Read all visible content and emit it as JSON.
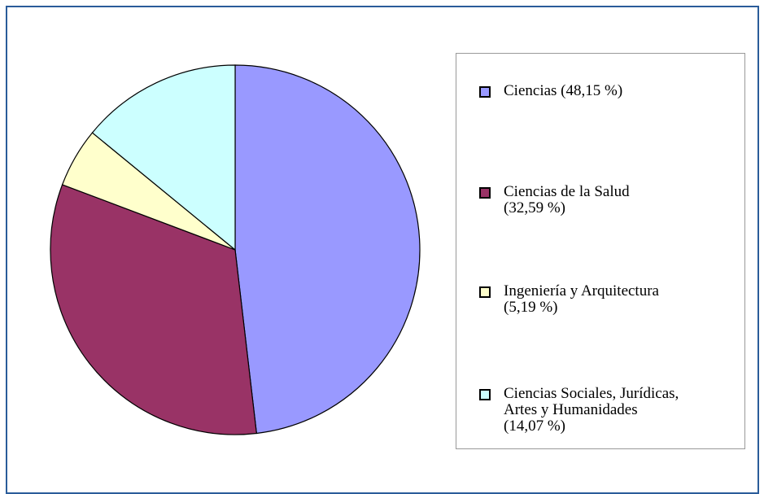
{
  "chart_data": {
    "type": "pie",
    "categories": [
      "Ciencias (48,15 %)",
      "Ciencias de la Salud\n(32,59 %)",
      "Ingeniería y Arquitectura\n(5,19 %)",
      "Ciencias Sociales, Jurídicas,\nArtes y Humanidades\n(14,07 %)"
    ],
    "values": [
      48.15,
      32.59,
      5.19,
      14.07
    ],
    "colors": [
      "#9999ff",
      "#993366",
      "#ffffcc",
      "#ccffff"
    ]
  }
}
